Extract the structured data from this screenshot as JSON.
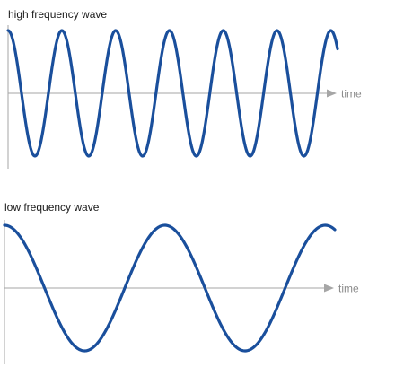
{
  "colors": {
    "wave": "#1a4f9c",
    "axis": "#a6a6a6",
    "axis_label": "#8a8a8a"
  },
  "panels": [
    {
      "title": "high frequency wave",
      "axis_label": "time",
      "cycles": 6.125
    },
    {
      "title": "low frequency wave",
      "axis_label": "time",
      "cycles": 2.06
    }
  ]
}
